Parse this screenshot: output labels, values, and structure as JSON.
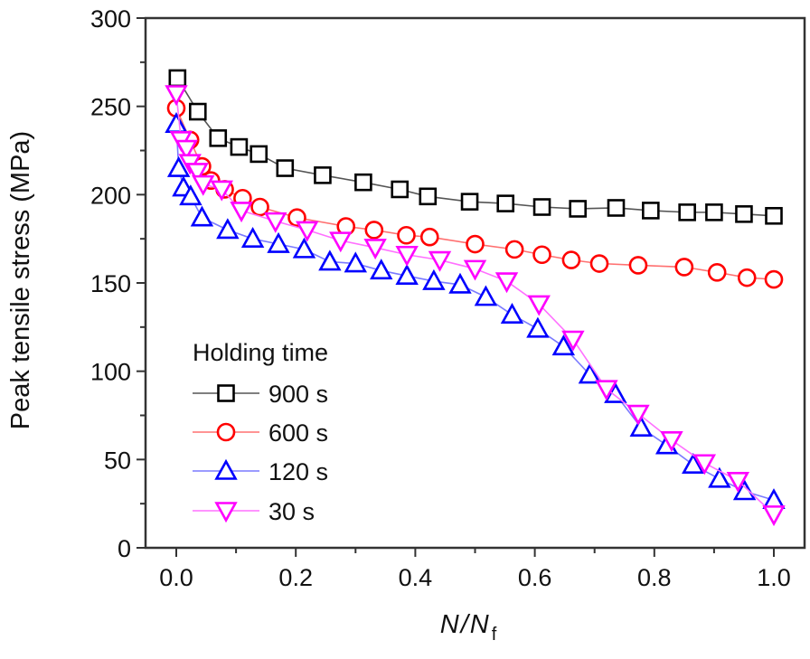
{
  "chart_data": {
    "type": "line",
    "title": "",
    "xlabel": "N / N_f",
    "xlabel_parts": {
      "main": "N",
      "sep": "/",
      "denom": "N",
      "sub": "f"
    },
    "ylabel": "Peak tensile stress (MPa)",
    "xlim": [
      -0.05,
      1.04
    ],
    "ylim": [
      0,
      300
    ],
    "x_ticks": [
      0.0,
      0.2,
      0.4,
      0.6,
      0.8,
      1.0
    ],
    "x_tick_labels": [
      "0.0",
      "0.2",
      "0.4",
      "0.6",
      "0.8",
      "1.0"
    ],
    "x_minor_ticks": [
      0.1,
      0.3,
      0.5,
      0.7,
      0.9
    ],
    "y_ticks": [
      0,
      50,
      100,
      150,
      200,
      250,
      300
    ],
    "y_tick_labels": [
      "0",
      "50",
      "100",
      "150",
      "200",
      "250",
      "300"
    ],
    "y_minor_ticks": [
      25,
      75,
      125,
      175,
      225,
      275
    ],
    "grid": false,
    "legend": {
      "title": "Holding time",
      "position": "bottom-left"
    },
    "series": [
      {
        "name": "900 s",
        "marker": "square",
        "color": "#000000",
        "line_color": "#555555",
        "x": [
          0.002,
          0.036,
          0.07,
          0.105,
          0.138,
          0.182,
          0.245,
          0.313,
          0.374,
          0.421,
          0.491,
          0.551,
          0.612,
          0.672,
          0.736,
          0.794,
          0.855,
          0.9,
          0.95,
          1.0
        ],
        "y": [
          266,
          247,
          232,
          227,
          223,
          215,
          211,
          207,
          203,
          199,
          196,
          195,
          193,
          192,
          192.5,
          191,
          190,
          190,
          189,
          188
        ]
      },
      {
        "name": "600 s",
        "marker": "circle",
        "color": "#ff0000",
        "line_color": "#ff7070",
        "x": [
          0.0,
          0.023,
          0.043,
          0.058,
          0.081,
          0.111,
          0.14,
          0.202,
          0.284,
          0.331,
          0.385,
          0.424,
          0.5,
          0.566,
          0.612,
          0.661,
          0.708,
          0.773,
          0.85,
          0.905,
          0.955,
          1.0
        ],
        "y": [
          249,
          231,
          216,
          208,
          203,
          198,
          193,
          187,
          182,
          180,
          177,
          176,
          172,
          169,
          166,
          163,
          161,
          160,
          159,
          156,
          153,
          152
        ]
      },
      {
        "name": "120 s",
        "marker": "triangle-up",
        "color": "#0000ff",
        "line_color": "#7a7aff",
        "x": [
          0.0,
          0.004,
          0.012,
          0.024,
          0.043,
          0.086,
          0.128,
          0.171,
          0.214,
          0.257,
          0.3,
          0.343,
          0.386,
          0.431,
          0.475,
          0.518,
          0.562,
          0.605,
          0.648,
          0.692,
          0.735,
          0.778,
          0.821,
          0.865,
          0.909,
          0.951,
          1.0
        ],
        "y": [
          240,
          215,
          204,
          199,
          187,
          180,
          175,
          172,
          169,
          162,
          161,
          157,
          154,
          151,
          149,
          142,
          132,
          124,
          114,
          98,
          87,
          68,
          58,
          47,
          39,
          32,
          27
        ]
      },
      {
        "name": "30 s",
        "marker": "triangle-down",
        "color": "#ff00ff",
        "line_color": "#ff70ff",
        "x": [
          0.0,
          0.008,
          0.017,
          0.023,
          0.035,
          0.045,
          0.076,
          0.109,
          0.166,
          0.219,
          0.275,
          0.333,
          0.386,
          0.441,
          0.5,
          0.553,
          0.607,
          0.664,
          0.72,
          0.773,
          0.829,
          0.884,
          0.94,
          1.0
        ],
        "y": [
          257,
          231,
          226,
          218,
          213,
          206,
          203,
          191,
          185,
          180,
          174,
          170,
          166,
          163,
          158,
          151,
          138,
          118,
          90,
          76,
          61,
          48,
          38,
          19
        ]
      }
    ]
  }
}
